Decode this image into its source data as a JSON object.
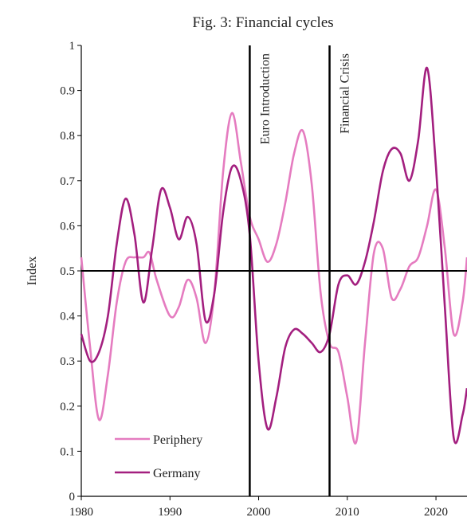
{
  "chart_data": {
    "type": "line",
    "title": "Fig. 3: Financial cycles",
    "xlabel": "",
    "ylabel": "Index",
    "xlim": [
      1980,
      2023.5
    ],
    "ylim": [
      0,
      1
    ],
    "xticks": [
      1980,
      1990,
      2000,
      2010,
      2020
    ],
    "yticks": [
      0,
      0.1,
      0.2,
      0.3,
      0.4,
      0.5,
      0.6,
      0.7,
      0.8,
      0.9,
      1
    ],
    "ytick_labels": [
      "0",
      "0.1",
      "0.2",
      "0.3",
      "0.4",
      "0.5",
      "0.6",
      "0.7",
      "0.8",
      "0.9",
      "1"
    ],
    "reference_line_y": 0.5,
    "grid": false,
    "legend_position": "bottom-left",
    "annotations": [
      {
        "text": "Euro Introduction",
        "x": 1999
      },
      {
        "text": "Financial Crisis",
        "x": 2008
      }
    ],
    "series": [
      {
        "name": "Periphery",
        "color": "#e57cc0",
        "x": [
          1980,
          1981,
          1982,
          1983,
          1984,
          1985,
          1986,
          1987,
          1987.7,
          1988.5,
          1990,
          1991,
          1992,
          1993,
          1994,
          1995,
          1996,
          1997,
          1998,
          1999,
          2000,
          2001,
          2002,
          2003,
          2004,
          2005,
          2006,
          2007,
          2008,
          2009,
          2010,
          2011,
          2012,
          2013,
          2014,
          2015,
          2016,
          2017,
          2018,
          2019,
          2020,
          2021,
          2022,
          2023,
          2023.5
        ],
        "y": [
          0.53,
          0.33,
          0.17,
          0.27,
          0.43,
          0.52,
          0.53,
          0.53,
          0.54,
          0.48,
          0.4,
          0.42,
          0.48,
          0.44,
          0.34,
          0.45,
          0.72,
          0.85,
          0.74,
          0.62,
          0.57,
          0.52,
          0.56,
          0.65,
          0.76,
          0.81,
          0.69,
          0.45,
          0.34,
          0.32,
          0.22,
          0.12,
          0.34,
          0.54,
          0.55,
          0.44,
          0.46,
          0.51,
          0.53,
          0.6,
          0.68,
          0.55,
          0.36,
          0.43,
          0.53
        ]
      },
      {
        "name": "Germany",
        "color": "#a31f7f",
        "x": [
          1980,
          1981,
          1982,
          1983,
          1984,
          1985,
          1986,
          1987,
          1988,
          1989,
          1990,
          1991,
          1992,
          1993,
          1994,
          1995,
          1996,
          1997,
          1998,
          1999,
          2000,
          2001,
          2002,
          2003,
          2004,
          2005,
          2006,
          2007,
          2008,
          2009,
          2010,
          2011,
          2012,
          2013,
          2014,
          2015,
          2016,
          2017,
          2018,
          2019,
          2020,
          2021,
          2022,
          2023,
          2023.5
        ],
        "y": [
          0.36,
          0.3,
          0.32,
          0.4,
          0.56,
          0.66,
          0.58,
          0.43,
          0.55,
          0.68,
          0.64,
          0.57,
          0.62,
          0.56,
          0.39,
          0.45,
          0.63,
          0.73,
          0.7,
          0.58,
          0.3,
          0.15,
          0.22,
          0.33,
          0.37,
          0.36,
          0.34,
          0.32,
          0.36,
          0.47,
          0.49,
          0.47,
          0.52,
          0.61,
          0.72,
          0.77,
          0.76,
          0.7,
          0.79,
          0.95,
          0.73,
          0.42,
          0.13,
          0.18,
          0.24
        ]
      }
    ]
  }
}
